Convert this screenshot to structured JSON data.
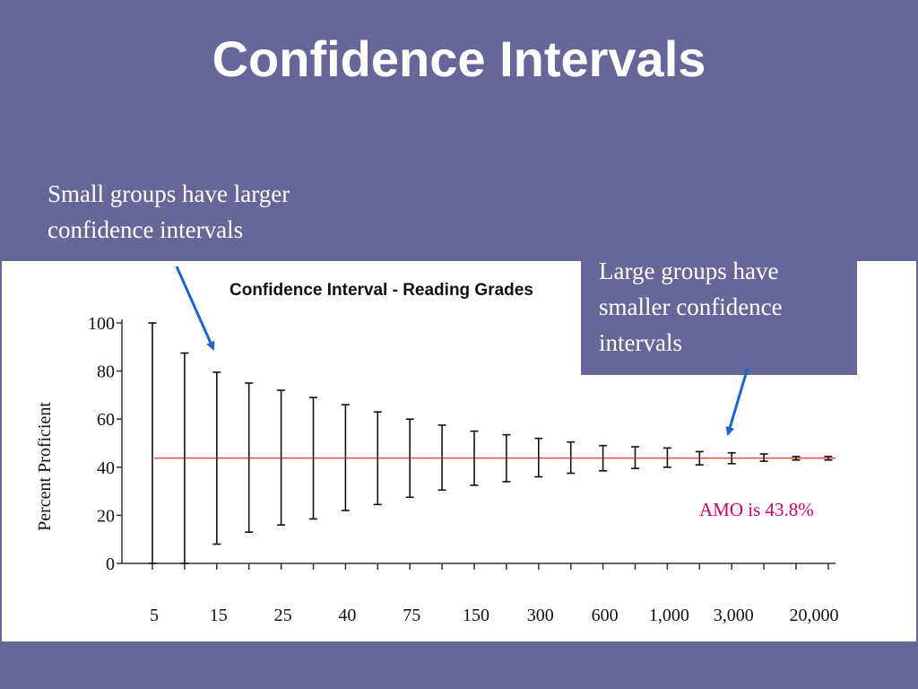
{
  "slide": {
    "title": "Confidence Intervals",
    "callout_small": {
      "lines": [
        "Small groups have larger",
        "confidence intervals"
      ]
    },
    "callout_large": {
      "lines": [
        "Large groups have",
        "smaller confidence",
        "intervals"
      ]
    },
    "amo_label": "AMO is 43.8%",
    "colors": {
      "background": "#666699",
      "reference_line": "#ee4444",
      "arrow": "#1a66cc",
      "amo_label": "#cc0066"
    }
  },
  "chart_data": {
    "type": "error_bar",
    "title": "Confidence Interval - Reading Grades",
    "ylabel": "Percent Proficient",
    "xlabel": "",
    "ylim": [
      0,
      100
    ],
    "y_ticks": [
      0,
      20,
      40,
      60,
      80,
      100
    ],
    "x_tick_labels": [
      "5",
      "15",
      "25",
      "40",
      "75",
      "150",
      "300",
      "600",
      "1,000",
      "3,000",
      "20,000"
    ],
    "reference_line": {
      "value": 43.8
    },
    "intervals": [
      {
        "lower": 0,
        "upper": 100
      },
      {
        "lower": 0,
        "upper": 87.5
      },
      {
        "lower": 8,
        "upper": 79.5
      },
      {
        "lower": 13,
        "upper": 75
      },
      {
        "lower": 16,
        "upper": 72
      },
      {
        "lower": 18.5,
        "upper": 69
      },
      {
        "lower": 22,
        "upper": 66
      },
      {
        "lower": 24.5,
        "upper": 63
      },
      {
        "lower": 27.5,
        "upper": 60
      },
      {
        "lower": 30.5,
        "upper": 57.5
      },
      {
        "lower": 32.5,
        "upper": 55
      },
      {
        "lower": 34,
        "upper": 53.5
      },
      {
        "lower": 36,
        "upper": 52
      },
      {
        "lower": 37.5,
        "upper": 50.5
      },
      {
        "lower": 38.5,
        "upper": 49
      },
      {
        "lower": 39.5,
        "upper": 48.5
      },
      {
        "lower": 40,
        "upper": 48
      },
      {
        "lower": 41,
        "upper": 46.5
      },
      {
        "lower": 41.5,
        "upper": 46
      },
      {
        "lower": 42.5,
        "upper": 45.5
      },
      {
        "lower": 43,
        "upper": 44.5
      },
      {
        "lower": 43,
        "upper": 44.5
      }
    ]
  }
}
